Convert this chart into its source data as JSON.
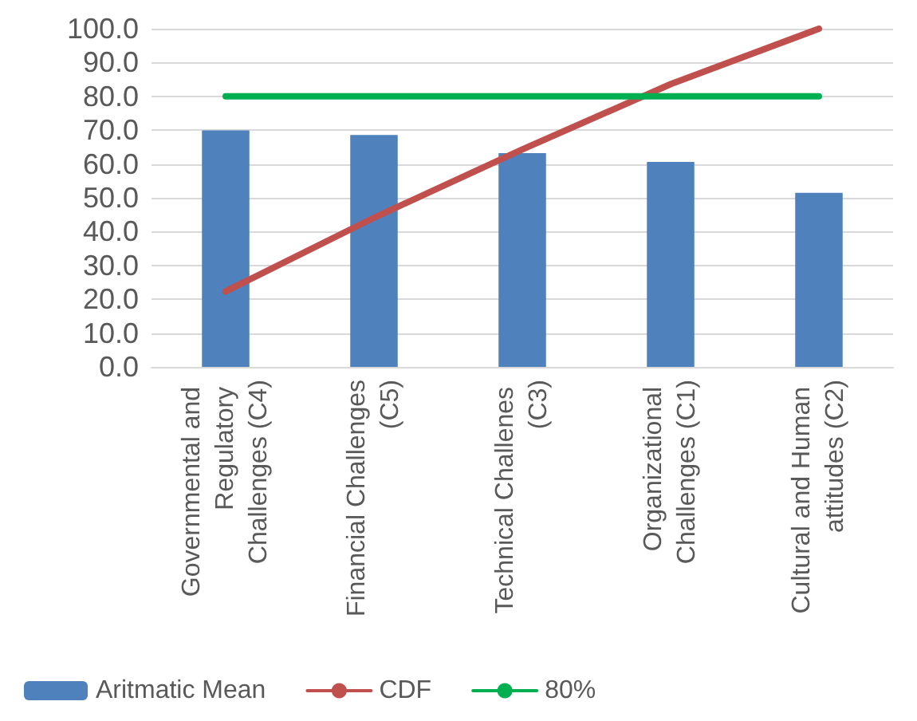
{
  "chart_data": {
    "type": "bar",
    "categories": [
      "Governmental and Regulatory Challenges (C4)",
      "Financial Challenges (C5)",
      "Technical Challenes (C3)",
      "Organizational Challenges (C1)",
      "Cultural and Human attitudes (C2)"
    ],
    "series": [
      {
        "name": "Aritmatic Mean",
        "color": "#4f81bd",
        "values": [
          69.9,
          68.6,
          63.2,
          60.6,
          51.5
        ]
      },
      {
        "name": "CDF",
        "type": "line",
        "color": "#c0504d",
        "values": [
          22.3,
          44.1,
          64.3,
          83.6,
          100.0
        ]
      },
      {
        "name": "80%",
        "type": "line",
        "color": "#00b050",
        "values": [
          80,
          80,
          80,
          80,
          80
        ]
      }
    ],
    "ylim": [
      0,
      100
    ],
    "yticks": [
      {
        "value": 0,
        "label": "0.0"
      },
      {
        "value": 10,
        "label": "10.0"
      },
      {
        "value": 20,
        "label": "20.0"
      },
      {
        "value": 30,
        "label": "30.0"
      },
      {
        "value": 40,
        "label": "40.0"
      },
      {
        "value": 50,
        "label": "50.0"
      },
      {
        "value": 60,
        "label": "60.0"
      },
      {
        "value": 70,
        "label": "70.0"
      },
      {
        "value": 80,
        "label": "80.0"
      },
      {
        "value": 90,
        "label": "90.0"
      },
      {
        "value": 100,
        "label": "100.0"
      }
    ],
    "grid": "y",
    "legend": "bottom",
    "marker": "none"
  }
}
